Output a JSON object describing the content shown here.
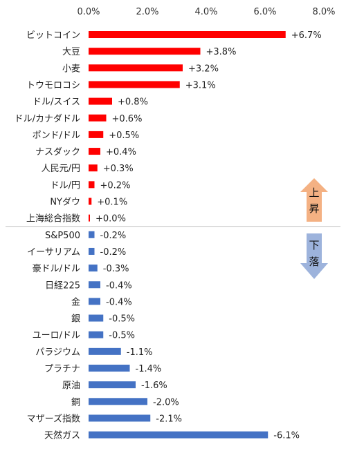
{
  "chart_data": {
    "type": "bar",
    "orientation": "horizontal",
    "xlim": [
      0,
      8
    ],
    "x_ticks": [
      "0.0%",
      "2.0%",
      "4.0%",
      "6.0%",
      "8.0%"
    ],
    "categories": [
      "ビットコイン",
      "大豆",
      "小麦",
      "トウモロコシ",
      "ドル/スイス",
      "ドル/カナダドル",
      "ポンド/ドル",
      "ナスダック",
      "人民元/円",
      "ドル/円",
      "NYダウ",
      "上海総合指数",
      "S&P500",
      "イーサリアム",
      "豪ドル/ドル",
      "日経225",
      "金",
      "銀",
      "ユーロ/ドル",
      "パラジウム",
      "プラチナ",
      "原油",
      "銅",
      "マザーズ指数",
      "天然ガス"
    ],
    "values": [
      6.7,
      3.8,
      3.2,
      3.1,
      0.8,
      0.6,
      0.5,
      0.4,
      0.3,
      0.2,
      0.1,
      0.0,
      -0.2,
      -0.2,
      -0.3,
      -0.4,
      -0.4,
      -0.5,
      -0.5,
      -1.1,
      -1.4,
      -1.6,
      -2.0,
      -2.1,
      -6.1
    ],
    "value_labels": [
      "+6.7%",
      "+3.8%",
      "+3.2%",
      "+3.1%",
      "+0.8%",
      "+0.6%",
      "+0.5%",
      "+0.4%",
      "+0.3%",
      "+0.2%",
      "+0.1%",
      "+0.0%",
      "-0.2%",
      "-0.2%",
      "-0.3%",
      "-0.4%",
      "-0.4%",
      "-0.5%",
      "-0.5%",
      "-1.1%",
      "-1.4%",
      "-1.6%",
      "-2.0%",
      "-2.1%",
      "-6.1%"
    ],
    "grid": false,
    "colors": {
      "up": "#ff0000",
      "down": "#4472c4",
      "divider": "#bfbfbf"
    }
  },
  "arrows": {
    "up": {
      "chars": [
        "上",
        "昇"
      ],
      "color": "#f4b183"
    },
    "down": {
      "chars": [
        "下",
        "落"
      ],
      "color": "#9db3dc"
    }
  }
}
